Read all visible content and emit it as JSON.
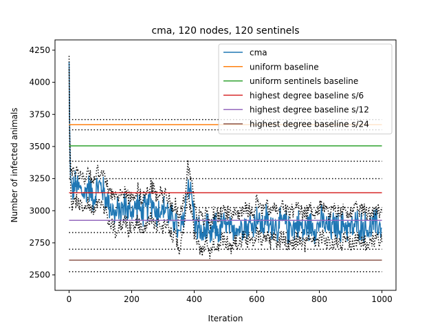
{
  "chart_data": {
    "type": "line",
    "title": "cma, 120 nodes, 120 sentinels",
    "xlabel": "Iteration",
    "ylabel": "Number of infected animals",
    "xlim": [
      -45,
      1045
    ],
    "ylim": [
      2380,
      4330
    ],
    "xticks": [
      "0",
      "200",
      "400",
      "600",
      "800",
      "1000"
    ],
    "yticks": [
      "2500",
      "2750",
      "3000",
      "3250",
      "3500",
      "3750",
      "4000",
      "4250"
    ],
    "xtick_values": [
      0,
      200,
      400,
      600,
      800,
      1000
    ],
    "ytick_values": [
      2500,
      2750,
      3000,
      3250,
      3500,
      3750,
      4000,
      4250
    ],
    "grid": false,
    "legend_position": "top-right",
    "cma_series": {
      "name": "cma",
      "color": "#1f77b4",
      "x": [
        0,
        2,
        5,
        10,
        20,
        30,
        40,
        50,
        60,
        70,
        80,
        90,
        100,
        110,
        120,
        130,
        140,
        150,
        160,
        170,
        180,
        190,
        200,
        210,
        220,
        230,
        240,
        250,
        260,
        270,
        280,
        290,
        300,
        310,
        320,
        330,
        340,
        350,
        360,
        370,
        380,
        390,
        400,
        410,
        420,
        430,
        440,
        450,
        460,
        470,
        480,
        490,
        500,
        510,
        520,
        530,
        540,
        550,
        560,
        570,
        580,
        590,
        600,
        610,
        620,
        630,
        640,
        650,
        660,
        670,
        680,
        690,
        700,
        710,
        720,
        730,
        740,
        750,
        760,
        770,
        780,
        790,
        800,
        810,
        820,
        830,
        840,
        850,
        860,
        870,
        880,
        890,
        900,
        910,
        920,
        930,
        940,
        950,
        960,
        970,
        980,
        990,
        1000
      ],
      "values": [
        4150,
        3550,
        3250,
        3150,
        3200,
        3180,
        3150,
        3120,
        3200,
        3150,
        3100,
        3180,
        3200,
        3150,
        3080,
        3050,
        3000,
        2960,
        3020,
        3000,
        3050,
        2980,
        3000,
        3020,
        3050,
        2980,
        3000,
        3020,
        3080,
        3050,
        2980,
        3020,
        3000,
        3030,
        2960,
        2920,
        2950,
        2780,
        2880,
        3000,
        3230,
        3150,
        2950,
        2850,
        2830,
        2800,
        2880,
        2760,
        2850,
        2870,
        2820,
        2900,
        2880,
        2860,
        2820,
        2900,
        2850,
        2880,
        2920,
        2870,
        2900,
        2880,
        2970,
        2900,
        2880,
        2940,
        2870,
        2900,
        2890,
        2860,
        2920,
        2910,
        2850,
        2890,
        2870,
        2900,
        2880,
        2840,
        2870,
        2900,
        2880,
        2860,
        2900,
        2920,
        2880,
        2860,
        2870,
        2890,
        2870,
        2860,
        2900,
        2880,
        2860,
        2870,
        2900,
        2880,
        2890,
        2860,
        2850,
        2880,
        2900,
        2880,
        2880
      ]
    },
    "dotted_envelope": {
      "color": "#000000",
      "amplitude": 150
    },
    "baselines": [
      {
        "name": "uniform baseline",
        "color": "#ff7f0e",
        "value": 3670,
        "band": [
          3630,
          3710
        ]
      },
      {
        "name": "uniform sentinels baseline",
        "color": "#2ca02c",
        "value": 3505,
        "band": []
      },
      {
        "name": "highest degree baseline s/6",
        "color": "#d62728",
        "value": 3140,
        "band": [
          3025,
          3250
        ]
      },
      {
        "name": "highest degree baseline s/12",
        "color": "#9467bd",
        "value": 2925,
        "band": [
          2830,
          3385
        ]
      },
      {
        "name": "highest degree baseline s/24",
        "color": "#8c564b",
        "value": 2615,
        "band": [
          2525,
          2700
        ]
      }
    ]
  }
}
